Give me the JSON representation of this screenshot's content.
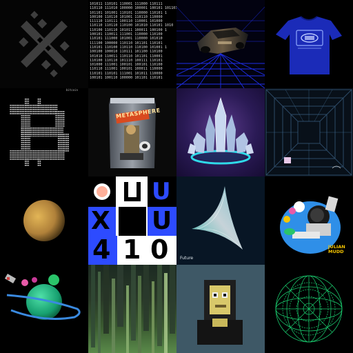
{
  "gallery": {
    "tiles": [
      {
        "name": "black-x-mosaic"
      },
      {
        "name": "binary-text",
        "lines": [
          "101011 110101 110001 111000 110111",
          "110110 111010 100000 100001 100101 101101",
          "101101 101001 110101 110000 110101 1",
          "100100 110110 101001 110110 110000",
          "111110 110111 100110 110001 101000",
          "110110 110110 110100 101010 110101 1010",
          "110100 110110 101011 100011 100100 1",
          "100101 110011 111001 110000 110100",
          "110101 111000 101001 110000 101010",
          "111100 100000 110110 101101 110101",
          "110101 110100 110110 110100 101001 1",
          "100100 100010 110111 101100 110100",
          "101010 110011 110110 101101 110001",
          "110100 110110 101110 100111 110101",
          "101000 111001 100101 100101 110100",
          "110110 111001 100101 100011 110000",
          "110101 110101 111001 101011 110000",
          "100101 100110 100000 101101 110101"
        ]
      },
      {
        "name": "retro-car-grid"
      },
      {
        "name": "blue-tshirt"
      },
      {
        "name": "ascii-bitcoin",
        "title": "bitcoin"
      },
      {
        "name": "metasurfer-bag",
        "label": "METASPHERE"
      },
      {
        "name": "crystal-shards"
      },
      {
        "name": "blue-tunnel"
      },
      {
        "name": "golden-sphere"
      },
      {
        "name": "letter-grid",
        "letters": [
          "C",
          "U",
          "X",
          "U",
          "4",
          "1",
          "0"
        ]
      },
      {
        "name": "future-shape",
        "label": "Future"
      },
      {
        "name": "julian-mudd",
        "label_line1": "JULIAN",
        "label_line2": "MUDD"
      },
      {
        "name": "green-planet"
      },
      {
        "name": "glitch-streaks"
      },
      {
        "name": "block-character"
      },
      {
        "name": "green-sphere-grid"
      }
    ]
  },
  "colors": {
    "background": "#000000",
    "tile_blue": "#1b2bb8",
    "letter_blue": "#2d4bff",
    "gold": "#d19b3a",
    "julian_yellow": "#f5c400",
    "cyan": "#2fd9e8",
    "green_mesh": "#19c46a"
  }
}
